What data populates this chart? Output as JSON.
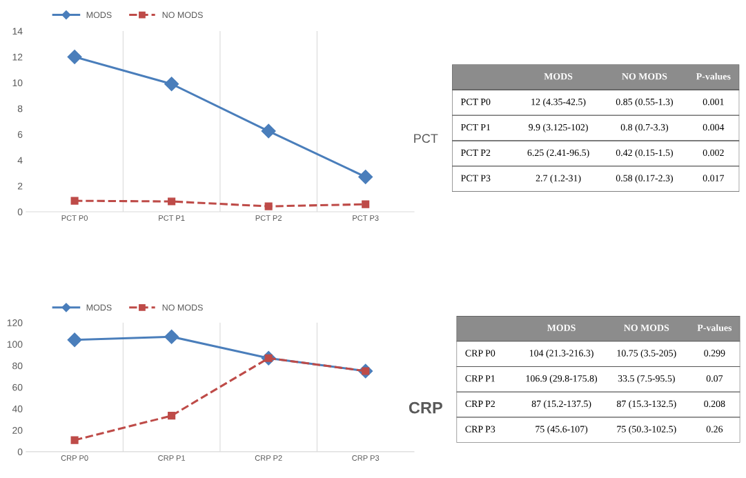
{
  "chart_data": [
    {
      "type": "line",
      "categories": [
        "PCT P0",
        "PCT P1",
        "PCT P2",
        "PCT P3"
      ],
      "series": [
        {
          "name": "MODS",
          "color": "#4a7ebb",
          "values": [
            12,
            9.9,
            6.25,
            2.7
          ],
          "marker": "diamond",
          "line_style": "solid"
        },
        {
          "name": "NO MODS",
          "color": "#be4b48",
          "values": [
            0.85,
            0.8,
            0.42,
            0.58
          ],
          "marker": "square",
          "line_style": "dashed"
        }
      ],
      "ylim": [
        0,
        14
      ],
      "yticks": [
        0,
        2,
        4,
        6,
        8,
        10,
        12,
        14
      ],
      "grid": "x",
      "legend": "top",
      "annotations": [
        "PCT"
      ]
    },
    {
      "type": "other",
      "categories": [
        null,
        "MODS",
        "NO MODS",
        "P-values"
      ],
      "y_categories": [
        "PCT P0",
        "PCT P1",
        "PCT P2",
        "PCT P3"
      ],
      "cell_labels": [
        [
          "12 (4.35-42.5)",
          "0.85 (0.55-1.3)",
          "0.001"
        ],
        [
          "9.9 (3.125-102)",
          "0.8 (0.7-3.3)",
          "0.004"
        ],
        [
          "6.25 (2.41-96.5)",
          "0.42 (0.15-1.5)",
          "0.002"
        ],
        [
          "2.7 (1.2-31)",
          "0.58 (0.17-2.3)",
          "0.017"
        ]
      ]
    },
    {
      "type": "line",
      "categories": [
        "CRP P0",
        "CRP P1",
        "CRP P2",
        "CRP P3"
      ],
      "series": [
        {
          "name": "MODS",
          "color": "#4a7ebb",
          "values": [
            104,
            106.9,
            87,
            75
          ],
          "marker": "diamond",
          "line_style": "solid"
        },
        {
          "name": "NO MODS",
          "color": "#be4b48",
          "values": [
            10.75,
            33.5,
            87,
            75
          ],
          "marker": "square",
          "line_style": "dashed"
        }
      ],
      "ylim": [
        0,
        120
      ],
      "yticks": [
        0,
        20,
        40,
        60,
        80,
        100,
        120
      ],
      "grid": "x",
      "legend": "top",
      "annotations": [
        "CRP"
      ]
    },
    {
      "type": "other",
      "categories": [
        null,
        "MODS",
        "NO MODS",
        "P-values"
      ],
      "y_categories": [
        "CRP P0",
        "CRP P1",
        "CRP P2",
        "CRP P3"
      ],
      "cell_labels": [
        [
          "104 (21.3-216.3)",
          "10.75 (3.5-205)",
          "0.299"
        ],
        [
          "106.9 (29.8-175.8)",
          "33.5 (7.5-95.5)",
          "0.07"
        ],
        [
          "87 (15.2-137.5)",
          "87 (15.3-132.5)",
          "0.208"
        ],
        [
          "75 (45.6-107)",
          "75 (50.3-102.5)",
          "0.26"
        ]
      ]
    }
  ]
}
